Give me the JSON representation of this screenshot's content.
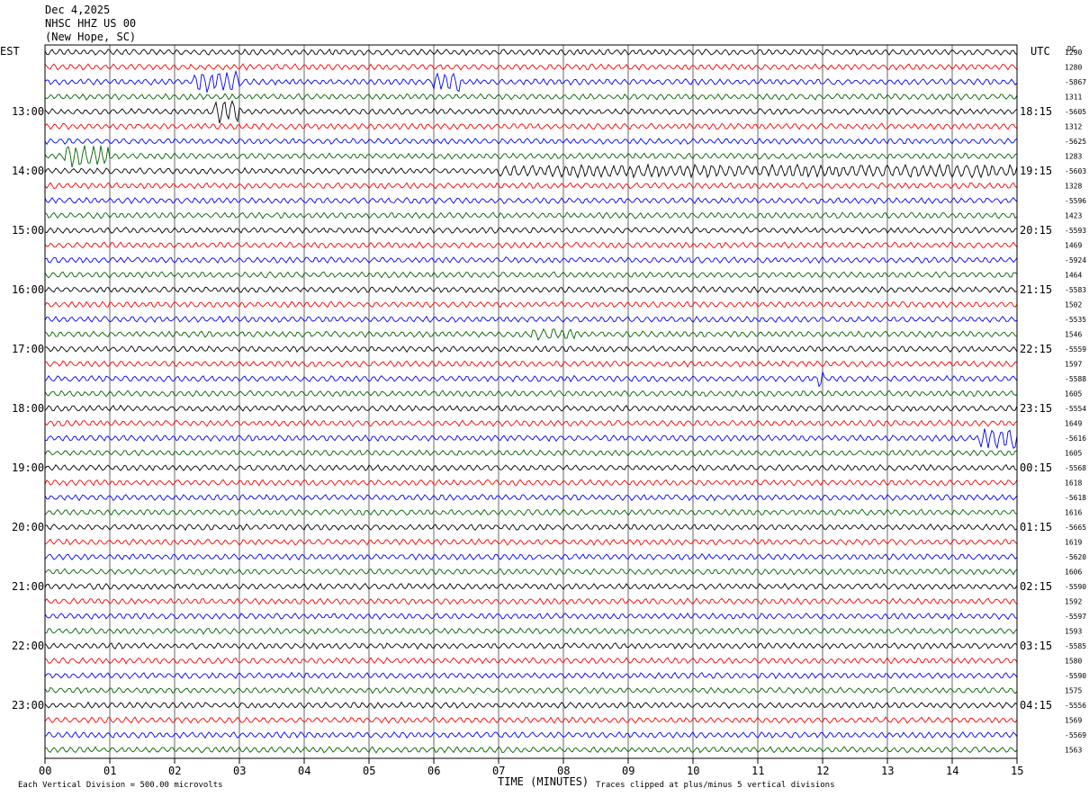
{
  "header": {
    "date": "Dec 4,2025",
    "station": "NHSC HHZ US 00",
    "location": "(New Hope, SC)"
  },
  "chart_data": {
    "type": "line",
    "title": "Dec 4,2025 NHSC HHZ US 00 (New Hope, SC)",
    "xlabel": "TIME (MINUTES)",
    "xlim": [
      0,
      15
    ],
    "x_ticks": [
      "00",
      "01",
      "02",
      "03",
      "04",
      "05",
      "06",
      "07",
      "08",
      "09",
      "10",
      "11",
      "12",
      "13",
      "14",
      "15"
    ],
    "left_timezone": "EST",
    "right_timezone": "UTC",
    "dc_label": "DC",
    "left_hour_labels": [
      "13:00",
      "14:00",
      "15:00",
      "16:00",
      "17:00",
      "18:00",
      "19:00",
      "20:00",
      "21:00",
      "22:00",
      "23:00"
    ],
    "right_hour_labels": [
      "18:15",
      "19:15",
      "20:15",
      "21:15",
      "22:15",
      "23:15",
      "00:15",
      "01:15",
      "02:15",
      "03:15",
      "04:15"
    ],
    "trace_count": 48,
    "trace_colors": [
      "#000000",
      "#ff0000",
      "#0000ff",
      "#006400"
    ],
    "dc_offsets": [
      "1290",
      "1280",
      "-5867",
      "1311",
      "-5605",
      "1312",
      "-5625",
      "1283",
      "-5603",
      "1328",
      "-5596",
      "1423",
      "-5593",
      "1469",
      "-5924",
      "1464",
      "-5583",
      "1502",
      "-5535",
      "1546",
      "-5559",
      "1597",
      "-5588",
      "1605",
      "-5554",
      "1649",
      "-5616",
      "1605",
      "-5568",
      "1618",
      "-5618",
      "1616",
      "-5665",
      "1619",
      "-5620",
      "1606",
      "-5590",
      "1592",
      "-5597",
      "1593",
      "-5585",
      "1580",
      "-5590",
      "1575",
      "-5556",
      "1569",
      "-5569",
      "1563"
    ],
    "grid": true,
    "scale_note": "Each Vertical Division =  500.00 microvolts",
    "clip_note": "Traces clipped at plus/minus 5 vertical divisions"
  }
}
